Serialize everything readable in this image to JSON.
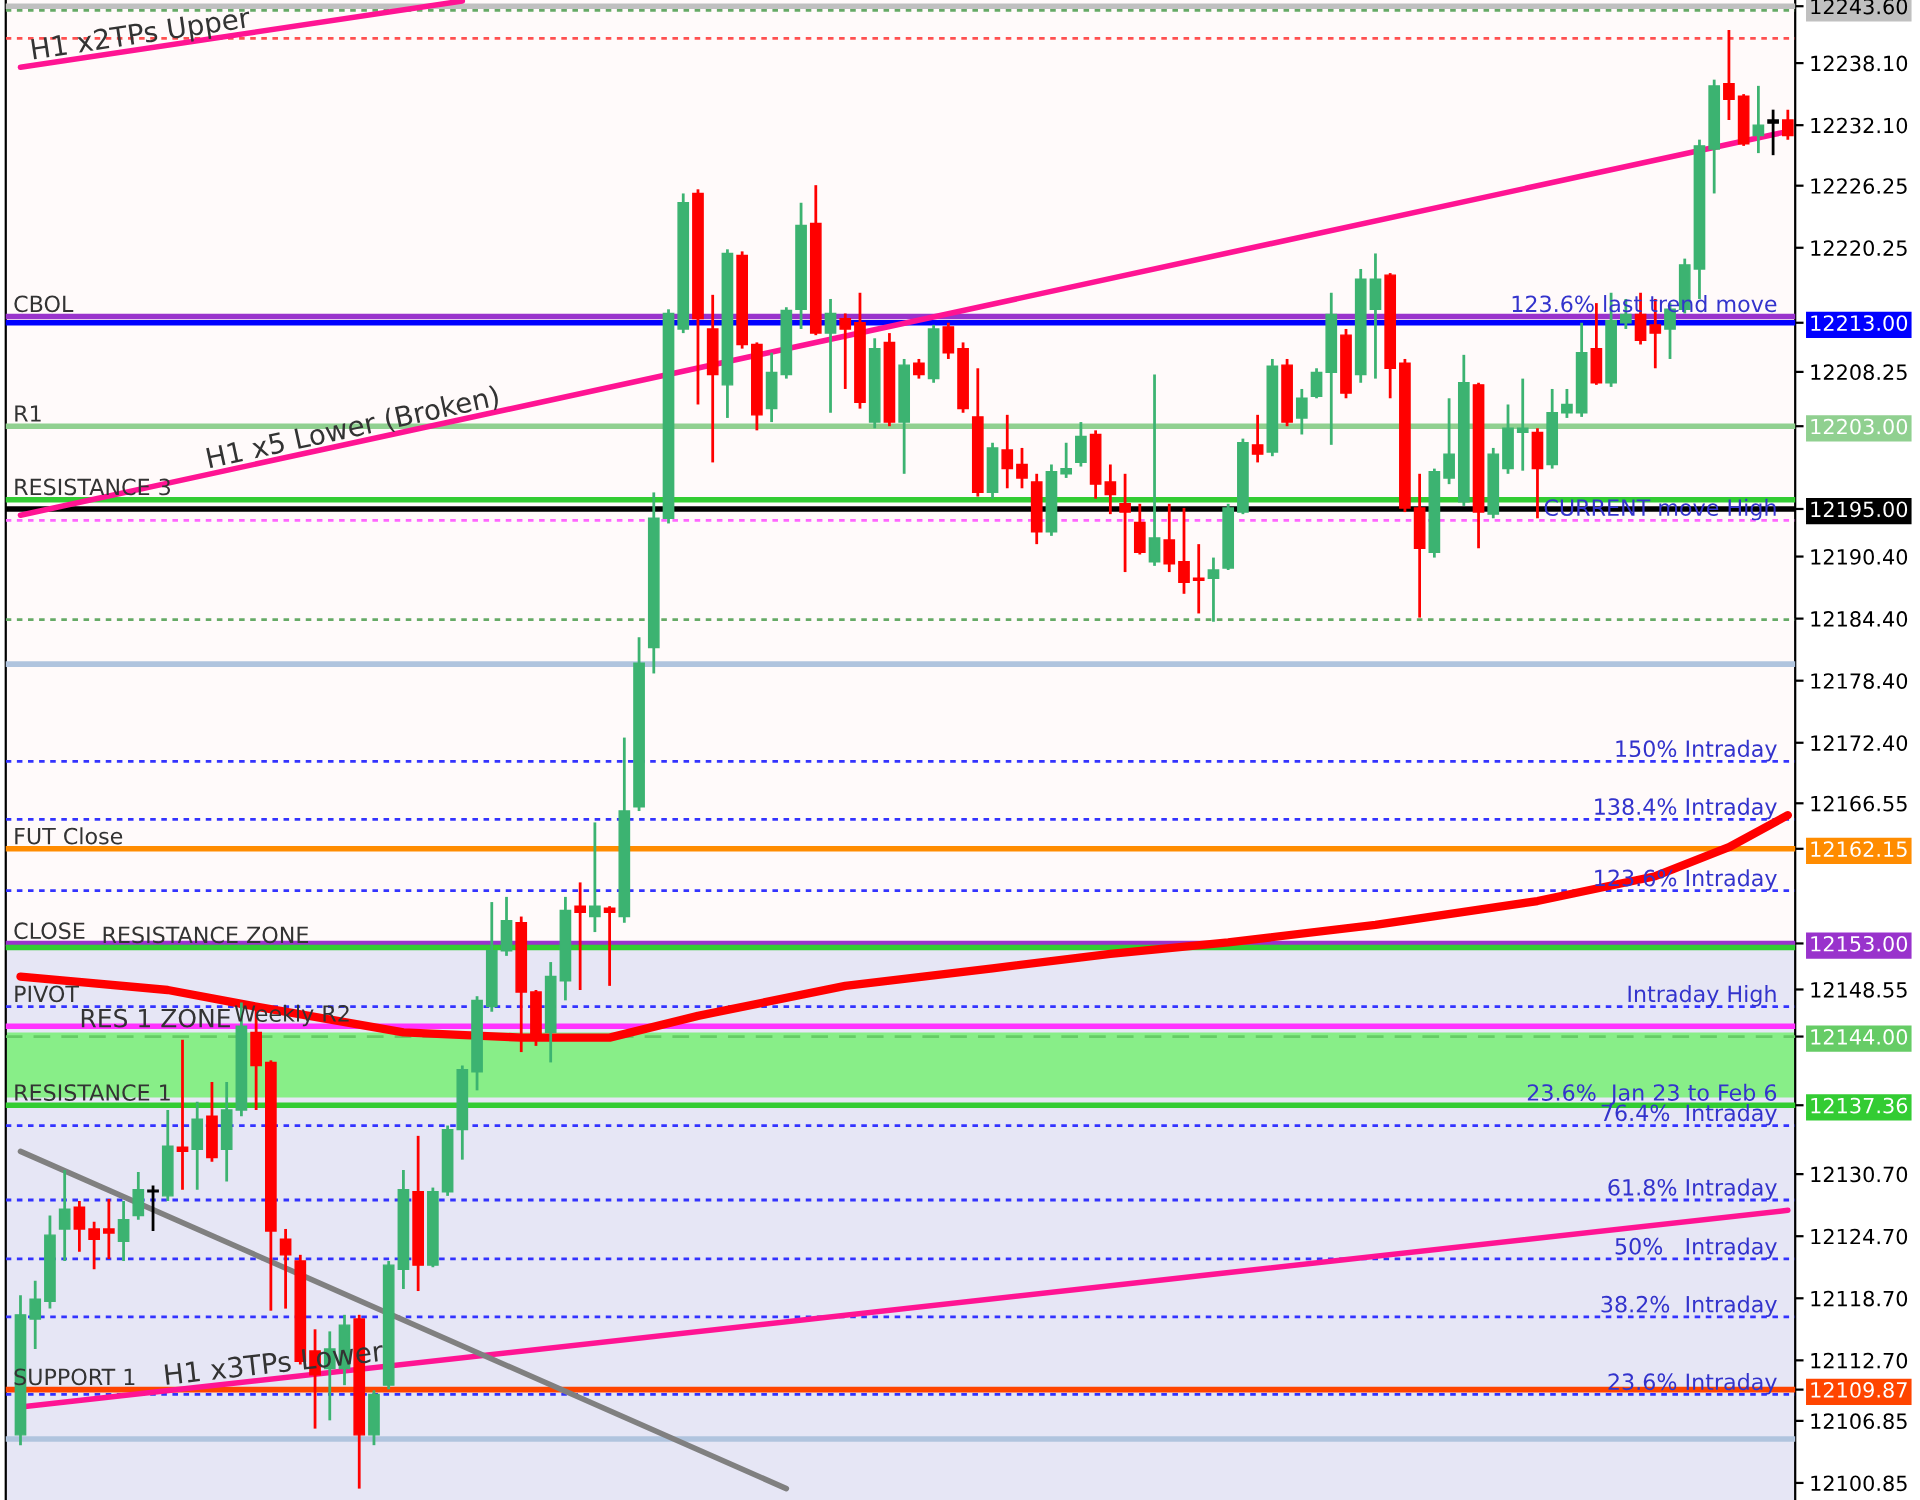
{
  "chart_data": {
    "type": "candlestick",
    "tick_labels": "y",
    "categories": [
      null,
      null,
      null,
      null,
      null,
      null,
      null,
      null,
      null,
      null,
      null,
      null,
      null,
      null,
      null,
      null,
      null,
      null,
      null,
      null,
      null,
      null,
      null,
      null,
      null,
      null,
      null,
      null,
      null,
      null,
      null,
      null,
      null,
      null,
      null,
      null,
      null,
      null,
      null,
      null,
      null,
      null,
      null,
      null,
      null,
      null,
      null,
      null,
      null,
      null,
      null,
      null,
      null,
      null,
      null,
      null,
      null,
      null,
      null,
      null,
      null,
      null,
      null,
      null,
      null,
      null,
      null,
      null,
      null,
      null,
      null,
      null,
      null,
      null,
      null,
      null,
      null,
      null,
      null,
      null,
      null,
      null,
      null,
      null,
      null,
      null,
      null,
      null,
      null,
      null,
      null,
      null,
      null,
      null,
      null,
      null,
      null,
      null,
      null,
      null,
      null,
      null,
      null,
      null,
      null,
      null,
      null,
      null,
      null,
      null,
      null,
      null,
      null,
      null,
      null,
      null,
      null,
      null,
      null,
      null,
      null
    ],
    "ohlc": [
      [
        12105.5,
        12119.0,
        12104.5,
        12117.1
      ],
      [
        12116.7,
        12120.4,
        12113.8,
        12118.6
      ],
      [
        12118.4,
        12126.7,
        12117.7,
        12124.8
      ],
      [
        12125.4,
        12131.1,
        12122.3,
        12127.3
      ],
      [
        12127.5,
        12128.1,
        12123.2,
        12125.4
      ],
      [
        12125.4,
        12126.1,
        12121.5,
        12124.4
      ],
      [
        12125.4,
        12128.3,
        12122.5,
        12125.0
      ],
      [
        12124.2,
        12128.1,
        12122.3,
        12126.3
      ],
      [
        12126.7,
        12130.9,
        12126.3,
        12129.2
      ],
      [
        12129.0,
        12129.6,
        12125.2,
        12129.0
      ],
      [
        12128.6,
        12136.9,
        12128.1,
        12133.4
      ],
      [
        12133.3,
        12143.7,
        12129.2,
        12132.9
      ],
      [
        12133.1,
        12137.7,
        12129.2,
        12136.0
      ],
      [
        12136.3,
        12139.6,
        12131.9,
        12132.3
      ],
      [
        12133.1,
        12139.6,
        12130.0,
        12136.9
      ],
      [
        12136.9,
        12147.3,
        12136.3,
        12145.0
      ],
      [
        12144.4,
        12146.6,
        12136.9,
        12141.2
      ],
      [
        12141.5,
        12141.7,
        12117.5,
        12125.2
      ],
      [
        12124.4,
        12125.4,
        12117.7,
        12122.9
      ],
      [
        12122.3,
        12122.9,
        12112.3,
        12112.6
      ],
      [
        12113.6,
        12115.7,
        12106.1,
        12111.3
      ],
      [
        12111.9,
        12115.5,
        12106.9,
        12113.8
      ],
      [
        12111.9,
        12117.1,
        12110.3,
        12116.1
      ],
      [
        12116.7,
        12117.1,
        12100.3,
        12105.5
      ],
      [
        12105.5,
        12109.8,
        12104.5,
        12109.4
      ],
      [
        12110.3,
        12122.3,
        12109.9,
        12121.9
      ],
      [
        12121.5,
        12131.1,
        12119.6,
        12129.2
      ],
      [
        12129.0,
        12134.4,
        12119.4,
        12121.9
      ],
      [
        12121.9,
        12129.4,
        12121.7,
        12129.0
      ],
      [
        12129.0,
        12135.4,
        12128.6,
        12135.0
      ],
      [
        12135.0,
        12141.2,
        12132.1,
        12140.8
      ],
      [
        12140.6,
        12147.9,
        12138.8,
        12147.5
      ],
      [
        12146.9,
        12157.0,
        12146.4,
        12152.3
      ],
      [
        12152.3,
        12157.5,
        12151.8,
        12155.2
      ],
      [
        12155.0,
        12155.6,
        12142.5,
        12148.3
      ],
      [
        12148.3,
        12148.5,
        12143.1,
        12144.0
      ],
      [
        12144.4,
        12151.2,
        12141.5,
        12149.8
      ],
      [
        12149.4,
        12157.5,
        12147.5,
        12156.2
      ],
      [
        12156.6,
        12158.9,
        12148.5,
        12156.0
      ],
      [
        12155.6,
        12164.7,
        12154.1,
        12156.6
      ],
      [
        12156.4,
        12156.6,
        12148.9,
        12156.0
      ],
      [
        12155.6,
        12172.9,
        12155.0,
        12165.8
      ],
      [
        12166.2,
        12182.6,
        12165.8,
        12180.1
      ],
      [
        12181.6,
        12196.6,
        12179.1,
        12194.1
      ],
      [
        12194.1,
        12214.3,
        12193.6,
        12213.9
      ],
      [
        12212.4,
        12225.5,
        12212.0,
        12224.6
      ],
      [
        12225.5,
        12225.9,
        12205.1,
        12213.4
      ],
      [
        12212.4,
        12215.7,
        12199.5,
        12208.0
      ],
      [
        12207.0,
        12220.1,
        12203.8,
        12219.7
      ],
      [
        12219.5,
        12219.9,
        12210.5,
        12210.9
      ],
      [
        12210.9,
        12211.1,
        12202.6,
        12204.1
      ],
      [
        12204.7,
        12210.1,
        12203.4,
        12208.2
      ],
      [
        12208.0,
        12214.5,
        12207.6,
        12214.2
      ],
      [
        12214.3,
        12224.6,
        12212.4,
        12222.4
      ],
      [
        12222.6,
        12226.3,
        12211.8,
        12212.0
      ],
      [
        12212.0,
        12215.3,
        12204.3,
        12213.9
      ],
      [
        12213.4,
        12213.9,
        12206.6,
        12212.4
      ],
      [
        12213.0,
        12215.9,
        12204.7,
        12205.3
      ],
      [
        12203.4,
        12211.5,
        12202.8,
        12210.5
      ],
      [
        12211.1,
        12212.0,
        12203.0,
        12203.4
      ],
      [
        12203.4,
        12209.5,
        12198.4,
        12208.9
      ],
      [
        12209.1,
        12209.5,
        12207.6,
        12208.0
      ],
      [
        12207.6,
        12212.8,
        12207.2,
        12212.4
      ],
      [
        12212.6,
        12213.0,
        12209.5,
        12210.1
      ],
      [
        12210.5,
        12211.1,
        12204.3,
        12204.7
      ],
      [
        12203.9,
        12208.6,
        12196.2,
        12196.6
      ],
      [
        12196.6,
        12201.4,
        12196.0,
        12200.9
      ],
      [
        12200.7,
        12204.1,
        12197.0,
        12198.9
      ],
      [
        12199.3,
        12200.9,
        12197.0,
        12198.0
      ],
      [
        12197.6,
        12198.4,
        12191.6,
        12192.8
      ],
      [
        12192.8,
        12199.3,
        12192.4,
        12198.6
      ],
      [
        12198.4,
        12201.4,
        12198.0,
        12198.9
      ],
      [
        12199.5,
        12203.4,
        12199.1,
        12202.0
      ],
      [
        12202.2,
        12202.6,
        12196.0,
        12197.4
      ],
      [
        12197.6,
        12199.3,
        12194.5,
        12196.4
      ],
      [
        12195.5,
        12198.4,
        12188.9,
        12194.7
      ],
      [
        12193.7,
        12195.5,
        12190.6,
        12190.8
      ],
      [
        12189.9,
        12208.0,
        12189.5,
        12192.2
      ],
      [
        12192.0,
        12195.5,
        12188.9,
        12189.7
      ],
      [
        12189.9,
        12195.1,
        12186.8,
        12187.9
      ],
      [
        12188.3,
        12191.6,
        12184.9,
        12188.1
      ],
      [
        12188.3,
        12190.3,
        12184.1,
        12189.1
      ],
      [
        12189.3,
        12195.5,
        12189.1,
        12195.1
      ],
      [
        12194.7,
        12201.8,
        12194.5,
        12201.4
      ],
      [
        12201.2,
        12204.1,
        12199.5,
        12200.3
      ],
      [
        12200.5,
        12209.5,
        12200.1,
        12208.8
      ],
      [
        12208.9,
        12209.5,
        12203.0,
        12203.4
      ],
      [
        12203.8,
        12206.6,
        12202.2,
        12205.7
      ],
      [
        12205.9,
        12208.6,
        12205.7,
        12208.2
      ],
      [
        12208.2,
        12215.9,
        12201.2,
        12213.8
      ],
      [
        12211.8,
        12212.4,
        12205.7,
        12206.2
      ],
      [
        12208.0,
        12218.2,
        12207.2,
        12217.2
      ],
      [
        12214.3,
        12219.7,
        12207.6,
        12217.2
      ],
      [
        12217.6,
        12217.8,
        12205.7,
        12208.6
      ],
      [
        12209.1,
        12209.5,
        12194.7,
        12195.1
      ],
      [
        12195.1,
        12198.4,
        12184.5,
        12191.2
      ],
      [
        12190.8,
        12198.9,
        12190.3,
        12198.6
      ],
      [
        12198.0,
        12205.7,
        12197.4,
        12200.3
      ],
      [
        12195.7,
        12209.9,
        12195.3,
        12207.2
      ],
      [
        12207.0,
        12207.2,
        12191.2,
        12194.7
      ],
      [
        12194.5,
        12200.9,
        12194.1,
        12200.3
      ],
      [
        12198.9,
        12205.1,
        12198.4,
        12202.8
      ],
      [
        12202.4,
        12207.6,
        12198.7,
        12202.8
      ],
      [
        12202.4,
        12202.8,
        12194.1,
        12198.9
      ],
      [
        12199.3,
        12206.6,
        12198.9,
        12204.3
      ],
      [
        12204.3,
        12206.6,
        12203.8,
        12205.1
      ],
      [
        12204.3,
        12213.0,
        12203.9,
        12210.1
      ],
      [
        12210.5,
        12214.9,
        12207.0,
        12207.2
      ],
      [
        12207.2,
        12215.9,
        12206.8,
        12213.2
      ],
      [
        12213.0,
        12215.3,
        12212.4,
        12213.8
      ],
      [
        12213.8,
        12215.9,
        12210.9,
        12211.3
      ],
      [
        12212.8,
        12215.3,
        12208.6,
        12212.0
      ],
      [
        12212.4,
        12214.9,
        12209.5,
        12214.3
      ],
      [
        12214.3,
        12219.2,
        12213.9,
        12218.6
      ],
      [
        12218.2,
        12230.7,
        12215.3,
        12230.1
      ],
      [
        12229.8,
        12236.5,
        12225.5,
        12235.9
      ],
      [
        12236.1,
        12241.3,
        12232.6,
        12234.6
      ],
      [
        12234.9,
        12235.1,
        12230.1,
        12230.3
      ],
      [
        12231.1,
        12235.9,
        12229.4,
        12232.1
      ],
      [
        12232.3,
        12233.6,
        12229.2,
        12232.6
      ],
      [
        12232.6,
        12233.6,
        12230.7,
        12231.1
      ]
    ],
    "colors": [
      "#3cb371",
      "#3cb371",
      "#3cb371",
      "#3cb371",
      "#ff0000",
      "#ff0000",
      "#ff0000",
      "#3cb371",
      "#3cb371",
      "#000000",
      "#3cb371",
      "#ff0000",
      "#3cb371",
      "#ff0000",
      "#3cb371",
      "#3cb371",
      "#ff0000",
      "#ff0000",
      "#ff0000",
      "#ff0000",
      "#ff0000",
      "#3cb371",
      "#3cb371",
      "#ff0000",
      "#3cb371",
      "#3cb371",
      "#3cb371",
      "#ff0000",
      "#3cb371",
      "#3cb371",
      "#3cb371",
      "#3cb371",
      "#3cb371",
      "#3cb371",
      "#ff0000",
      "#ff0000",
      "#3cb371",
      "#3cb371",
      "#ff0000",
      "#3cb371",
      "#ff0000",
      "#3cb371",
      "#3cb371",
      "#3cb371",
      "#3cb371",
      "#3cb371",
      "#ff0000",
      "#ff0000",
      "#3cb371",
      "#ff0000",
      "#ff0000",
      "#3cb371",
      "#3cb371",
      "#3cb371",
      "#ff0000",
      "#3cb371",
      "#ff0000",
      "#ff0000",
      "#3cb371",
      "#ff0000",
      "#3cb371",
      "#ff0000",
      "#3cb371",
      "#ff0000",
      "#ff0000",
      "#ff0000",
      "#3cb371",
      "#ff0000",
      "#ff0000",
      "#ff0000",
      "#3cb371",
      "#3cb371",
      "#3cb371",
      "#ff0000",
      "#ff0000",
      "#ff0000",
      "#ff0000",
      "#3cb371",
      "#ff0000",
      "#ff0000",
      "#ff0000",
      "#3cb371",
      "#3cb371",
      "#3cb371",
      "#ff0000",
      "#3cb371",
      "#ff0000",
      "#3cb371",
      "#3cb371",
      "#3cb371",
      "#ff0000",
      "#3cb371",
      "#3cb371",
      "#ff0000",
      "#ff0000",
      "#ff0000",
      "#3cb371",
      "#3cb371",
      "#3cb371",
      "#ff0000",
      "#3cb371",
      "#3cb371",
      "#3cb371",
      "#ff0000",
      "#3cb371",
      "#3cb371",
      "#3cb371",
      "#ff0000",
      "#3cb371",
      "#3cb371",
      "#ff0000",
      "#ff0000",
      "#3cb371",
      "#3cb371",
      "#3cb371",
      "#3cb371",
      "#ff0000",
      "#ff0000",
      "#3cb371",
      "#000000",
      "#ff0000"
    ],
    "series": [
      {
        "type": "line",
        "name": "H1 x2TPs Upper",
        "color": "#ff1493",
        "values": [
          12237.7,
          null,
          null,
          null,
          null,
          null,
          null,
          null,
          null,
          null,
          null,
          null,
          null,
          null,
          null,
          null,
          null,
          null,
          null,
          null,
          null,
          null,
          null,
          null,
          null,
          null,
          null,
          null,
          null,
          null,
          12244.1,
          null,
          null,
          null,
          null,
          null,
          null,
          null,
          null,
          null,
          null,
          null,
          null,
          null,
          null,
          null,
          null,
          null,
          null,
          null,
          null,
          null,
          null,
          null,
          null,
          null,
          null,
          null,
          null,
          null,
          null,
          null,
          null,
          null,
          null,
          null,
          null,
          null,
          null,
          null,
          null,
          null,
          null,
          null,
          null,
          null,
          null,
          null,
          null,
          null,
          null,
          null,
          null,
          null,
          null,
          null,
          null,
          null,
          null,
          null,
          null,
          null,
          null,
          null,
          null,
          null,
          null,
          null,
          null,
          null,
          null,
          null,
          null,
          null,
          null,
          null,
          null,
          null,
          null,
          null,
          null,
          null,
          null,
          null,
          null,
          null,
          null,
          null,
          null,
          null,
          null
        ]
      },
      {
        "type": "line",
        "name": "H1 x5 Lower (Broken)",
        "color": "#ff1493",
        "values": [
          12194.4,
          null,
          null,
          null,
          null,
          null,
          null,
          null,
          null,
          null,
          null,
          null,
          null,
          null,
          null,
          null,
          null,
          null,
          null,
          null,
          null,
          null,
          null,
          null,
          null,
          null,
          null,
          null,
          null,
          null,
          null,
          null,
          null,
          null,
          null,
          null,
          null,
          null,
          null,
          null,
          null,
          null,
          null,
          null,
          null,
          null,
          null,
          null,
          null,
          null,
          null,
          null,
          null,
          null,
          null,
          null,
          null,
          null,
          null,
          null,
          null,
          null,
          null,
          null,
          null,
          null,
          null,
          null,
          null,
          null,
          null,
          null,
          null,
          null,
          null,
          null,
          null,
          null,
          null,
          null,
          null,
          null,
          null,
          null,
          null,
          null,
          null,
          null,
          null,
          null,
          null,
          null,
          null,
          null,
          null,
          null,
          null,
          null,
          null,
          null,
          null,
          null,
          null,
          null,
          null,
          null,
          null,
          null,
          null,
          null,
          null,
          null,
          null,
          null,
          null,
          null,
          null,
          null,
          null,
          null,
          12231.5
        ]
      },
      {
        "type": "line",
        "name": "H1 x3TPs Lower",
        "color": "#ff1493",
        "values": [
          12108.2,
          null,
          null,
          null,
          null,
          null,
          null,
          null,
          null,
          null,
          null,
          null,
          null,
          null,
          null,
          null,
          null,
          null,
          null,
          null,
          null,
          null,
          null,
          null,
          null,
          null,
          null,
          null,
          null,
          null,
          null,
          null,
          null,
          null,
          null,
          null,
          null,
          null,
          null,
          null,
          null,
          null,
          null,
          null,
          null,
          null,
          null,
          null,
          null,
          null,
          null,
          null,
          null,
          null,
          null,
          null,
          null,
          null,
          null,
          null,
          null,
          null,
          null,
          null,
          null,
          null,
          null,
          null,
          null,
          null,
          null,
          null,
          null,
          null,
          null,
          null,
          null,
          null,
          null,
          null,
          null,
          null,
          null,
          null,
          null,
          null,
          null,
          null,
          null,
          null,
          null,
          null,
          null,
          null,
          null,
          null,
          null,
          null,
          null,
          null,
          null,
          null,
          null,
          null,
          null,
          null,
          null,
          null,
          null,
          null,
          null,
          null,
          null,
          null,
          null,
          null,
          null,
          null,
          null,
          null,
          12127.2
        ]
      },
      {
        "type": "line",
        "color": "#808080",
        "values": [
          12132.9,
          null,
          null,
          null,
          null,
          null,
          null,
          null,
          null,
          null,
          null,
          null,
          null,
          null,
          null,
          null,
          null,
          null,
          null,
          null,
          null,
          null,
          null,
          null,
          null,
          null,
          null,
          null,
          null,
          null,
          null,
          null,
          null,
          null,
          null,
          null,
          null,
          null,
          null,
          null,
          null,
          null,
          null,
          null,
          null,
          null,
          null,
          null,
          null,
          null,
          null,
          null,
          12100.3,
          null,
          null,
          null,
          null,
          null,
          null,
          null,
          null,
          null,
          null,
          null,
          null,
          null,
          null,
          null,
          null,
          null,
          null,
          null,
          null,
          null,
          null,
          null,
          null,
          null,
          null,
          null,
          null,
          null,
          null,
          null,
          null,
          null,
          null,
          null,
          null,
          null,
          null,
          null,
          null,
          null,
          null,
          null,
          null,
          null,
          null,
          null,
          null,
          null,
          null,
          null,
          null,
          null,
          null,
          null,
          null,
          null,
          null,
          null,
          null,
          null,
          null,
          null,
          null,
          null,
          null,
          null,
          null
        ]
      },
      {
        "type": "line",
        "color": "#ff0000",
        "values": [
          12149.8,
          null,
          null,
          null,
          null,
          null,
          null,
          null,
          null,
          null,
          12148.5,
          null,
          null,
          null,
          null,
          null,
          12146.9,
          null,
          null,
          null,
          null,
          null,
          null,
          null,
          null,
          null,
          12144.4,
          null,
          null,
          null,
          null,
          null,
          null,
          null,
          12143.9,
          null,
          null,
          null,
          null,
          null,
          12143.9,
          null,
          null,
          null,
          null,
          null,
          12146.0,
          null,
          null,
          null,
          null,
          null,
          null,
          null,
          null,
          null,
          12148.9,
          null,
          null,
          null,
          null,
          null,
          null,
          null,
          null,
          null,
          12150.6,
          null,
          null,
          null,
          null,
          null,
          null,
          null,
          12152.0,
          null,
          null,
          null,
          null,
          null,
          null,
          null,
          12153.1,
          null,
          null,
          null,
          null,
          null,
          null,
          null,
          null,
          null,
          12154.8,
          null,
          null,
          null,
          null,
          null,
          null,
          null,
          null,
          null,
          null,
          12157.1,
          null,
          null,
          null,
          null,
          null,
          null,
          null,
          12159.5,
          null,
          null,
          null,
          null,
          12162.3,
          null,
          null,
          null,
          12165.4
        ]
      }
    ],
    "ylim": [
      12099.2,
      12244.2
    ],
    "yticks": [
      {
        "value": 12238.1,
        "label": "12238.10"
      },
      {
        "value": 12232.1,
        "label": "12232.10"
      },
      {
        "value": 12226.25,
        "label": "12226.25"
      },
      {
        "value": 12220.25,
        "label": "12220.25"
      },
      {
        "value": 12208.25,
        "label": "12208.25"
      },
      {
        "value": 12190.4,
        "label": "12190.40"
      },
      {
        "value": 12184.4,
        "label": "12184.40"
      },
      {
        "value": 12178.4,
        "label": "12178.40"
      },
      {
        "value": 12172.4,
        "label": "12172.40"
      },
      {
        "value": 12166.55,
        "label": "12166.55"
      },
      {
        "value": 12148.55,
        "label": "12148.55"
      },
      {
        "value": 12130.7,
        "label": "12130.70"
      },
      {
        "value": 12124.7,
        "label": "12124.70"
      },
      {
        "value": 12118.7,
        "label": "12118.70"
      },
      {
        "value": 12112.7,
        "label": "12112.70"
      },
      {
        "value": 12106.85,
        "label": "12106.85"
      },
      {
        "value": 12100.85,
        "label": "12100.85"
      },
      {
        "value": 12243.6,
        "label": "12243.60"
      },
      {
        "value": 12213.0,
        "label": "12213.00"
      },
      {
        "value": 12203.0,
        "label": "12203.00"
      },
      {
        "value": 12195.0,
        "label": "12195.00"
      },
      {
        "value": 12162.15,
        "label": "12162.15"
      },
      {
        "value": 12153.0,
        "label": "12153.00"
      },
      {
        "value": 12144.0,
        "label": "12144.00"
      },
      {
        "value": 12137.36,
        "label": "12137.36"
      },
      {
        "value": 12109.87,
        "label": "12109.87"
      }
    ],
    "bands": [
      {
        "axis": "y",
        "from": 12099.2,
        "to": 12152.4,
        "color": "#e6e6f5"
      },
      {
        "axis": "y",
        "from": 12138.1,
        "to": 12144.4,
        "color": "#88ee88",
        "label": "RES 1 ZONE"
      }
    ],
    "ref_lines": [
      {
        "axis": "y",
        "value": 12243.6,
        "color": "#c0c0c0"
      },
      {
        "axis": "y",
        "value": 12243.2,
        "color": "#66aa66",
        "line_style": "dotted"
      },
      {
        "axis": "y",
        "value": 12240.5,
        "color": "#ff5050",
        "line_style": "dotted"
      },
      {
        "axis": "y",
        "value": 12213.6,
        "label": "CBOL",
        "color": "#9933cc"
      },
      {
        "axis": "y",
        "value": 12213.0,
        "color": "#0000ff"
      },
      {
        "axis": "y",
        "value": 12203.0,
        "label": "R1",
        "color": "#90d090"
      },
      {
        "axis": "y",
        "value": 12195.9,
        "label": "RESISTANCE 3",
        "color": "#33cc33"
      },
      {
        "axis": "y",
        "value": 12195.0,
        "color": "#000000"
      },
      {
        "axis": "y",
        "value": 12193.9,
        "color": "#ff66ff",
        "line_style": "dotted"
      },
      {
        "axis": "y",
        "value": 12184.3,
        "color": "#66aa66",
        "line_style": "dotted"
      },
      {
        "axis": "y",
        "value": 12180.0,
        "color": "#b0c4de"
      },
      {
        "axis": "y",
        "value": 12170.6,
        "color": "#3333ff",
        "line_style": "dotted"
      },
      {
        "axis": "y",
        "value": 12165.0,
        "color": "#3333ff",
        "line_style": "dotted"
      },
      {
        "axis": "y",
        "value": 12162.15,
        "label": "FUT Close",
        "color": "#ff8c00"
      },
      {
        "axis": "y",
        "value": 12158.1,
        "color": "#3333ff",
        "line_style": "dotted"
      },
      {
        "axis": "y",
        "value": 12153.0,
        "label": "CLOSE",
        "color": "#9933cc"
      },
      {
        "axis": "y",
        "value": 12152.6,
        "label": "RESISTANCE ZONE",
        "color": "#33cc33"
      },
      {
        "axis": "y",
        "value": 12146.9,
        "label": "PIVOT",
        "color": "#3333ff",
        "line_style": "dotted"
      },
      {
        "axis": "y",
        "value": 12145.0,
        "label": "Weekly R2",
        "color": "#ff33ff"
      },
      {
        "axis": "y",
        "value": 12144.0,
        "color": "#66cc66",
        "line_style": "dashed"
      },
      {
        "axis": "y",
        "value": 12137.36,
        "label": "RESISTANCE 1",
        "color": "#33cc33"
      },
      {
        "axis": "y",
        "value": 12135.4,
        "color": "#3333ff",
        "line_style": "dotted"
      },
      {
        "axis": "y",
        "value": 12128.2,
        "color": "#3333ff",
        "line_style": "dotted"
      },
      {
        "axis": "y",
        "value": 12122.5,
        "color": "#3333ff",
        "line_style": "dotted"
      },
      {
        "axis": "y",
        "value": 12116.9,
        "color": "#3333ff",
        "line_style": "dotted"
      },
      {
        "axis": "y",
        "value": 12109.87,
        "label": "SUPPORT 1",
        "color": "#ff4500"
      },
      {
        "axis": "y",
        "value": 12109.4,
        "color": "#3333ff",
        "line_style": "dotted"
      },
      {
        "axis": "y",
        "value": 12105.1,
        "color": "#b0c4de"
      }
    ],
    "annotations": [
      {
        "text": "123.6% last trend move",
        "y": 12213.6
      },
      {
        "text": "CURRENT move High",
        "y": 12193.9
      },
      {
        "text": "150% Intraday",
        "y": 12170.6
      },
      {
        "text": "138.4% Intraday",
        "y": 12165.0
      },
      {
        "text": "123.6% Intraday",
        "y": 12158.1
      },
      {
        "text": "Intraday High",
        "y": 12146.9
      },
      {
        "text": "23.6%  Jan 23 to Feb 6",
        "y": 12137.36
      },
      {
        "text": "76.4%  Intraday",
        "y": 12135.4
      },
      {
        "text": "61.8% Intraday",
        "y": 12128.2
      },
      {
        "text": "50%   Intraday",
        "y": 12122.5
      },
      {
        "text": "38.2%  Intraday",
        "y": 12116.9
      },
      {
        "text": "23.6% Intraday",
        "y": 12109.4
      }
    ]
  }
}
